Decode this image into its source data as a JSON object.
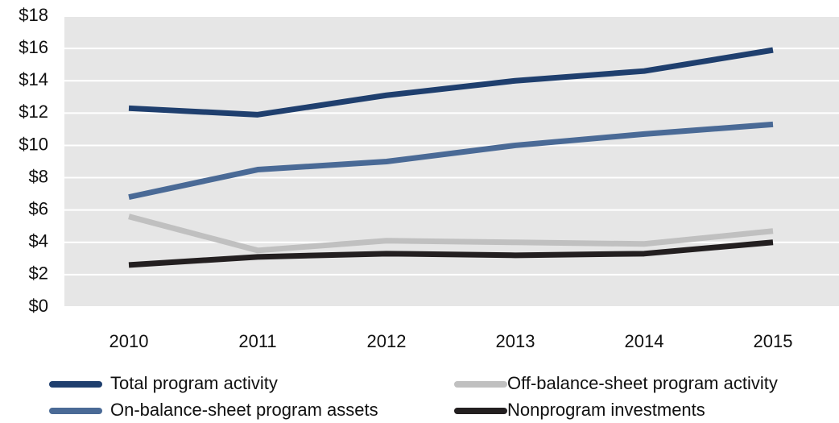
{
  "chart_data": {
    "type": "line",
    "categories": [
      "2010",
      "2011",
      "2012",
      "2013",
      "2014",
      "2015"
    ],
    "series": [
      {
        "name": "Total program activity",
        "color": "#1f3f6e",
        "values": [
          12.3,
          11.9,
          13.1,
          14.0,
          14.6,
          15.9
        ]
      },
      {
        "name": "On-balance-sheet program assets",
        "color": "#4a6a96",
        "values": [
          6.8,
          8.5,
          9.0,
          10.0,
          10.7,
          11.3
        ]
      },
      {
        "name": "Off-balance-sheet program activity",
        "color": "#c0c0c0",
        "values": [
          5.6,
          3.5,
          4.1,
          4.0,
          3.9,
          4.7
        ]
      },
      {
        "name": "Nonprogram investments",
        "color": "#231f20",
        "values": [
          2.6,
          3.1,
          3.3,
          3.2,
          3.3,
          4.0
        ]
      }
    ],
    "ylim": [
      0,
      18
    ],
    "yticks": [
      {
        "value": 0,
        "label": "$0"
      },
      {
        "value": 2,
        "label": "$2"
      },
      {
        "value": 4,
        "label": "$4"
      },
      {
        "value": 6,
        "label": "$6"
      },
      {
        "value": 8,
        "label": "$8"
      },
      {
        "value": 10,
        "label": "$10"
      },
      {
        "value": 12,
        "label": "$12"
      },
      {
        "value": 14,
        "label": "$14"
      },
      {
        "value": 16,
        "label": "$16"
      },
      {
        "value": 18,
        "label": "$18"
      }
    ],
    "grid": true
  }
}
